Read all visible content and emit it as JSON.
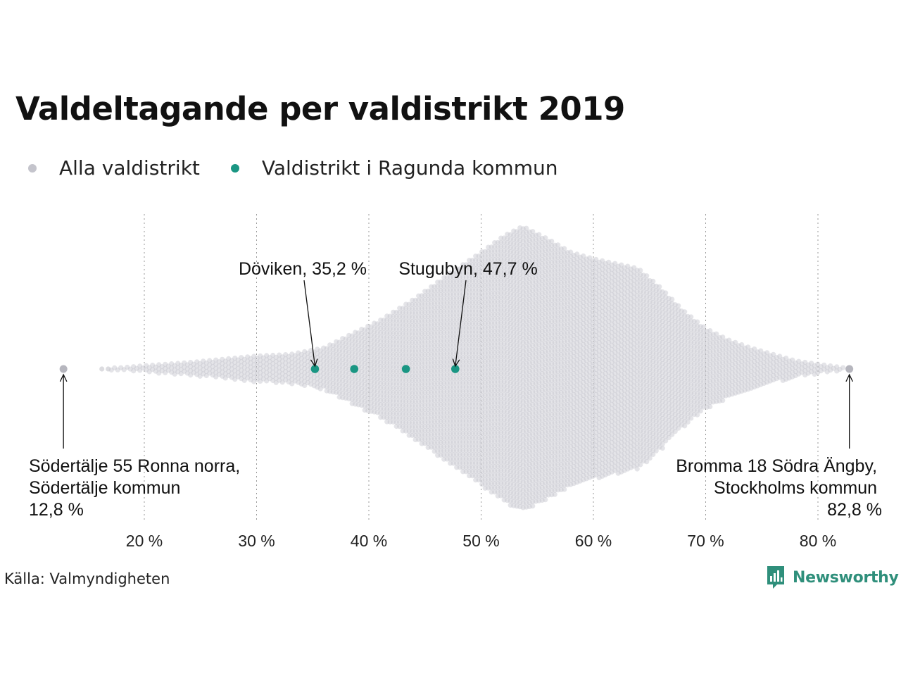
{
  "title": "Valdeltagande per valdistrikt 2019",
  "legend": [
    {
      "label": "Alla valdistrikt",
      "color": "#c4c4cc"
    },
    {
      "label": "Valdistrikt i Ragunda kommun",
      "color": "#1a9683"
    }
  ],
  "source": "Källa: Valmyndigheten",
  "brand": {
    "name": "Newsworthy",
    "color": "#2f8f7b"
  },
  "chart_data": {
    "type": "scatter",
    "title": "Valdeltagande per valdistrikt 2019",
    "xlim": [
      12,
      84
    ],
    "xticks": [
      {
        "value": 20,
        "label": "20 %"
      },
      {
        "value": 30,
        "label": "30 %"
      },
      {
        "value": 40,
        "label": "40 %"
      },
      {
        "value": 50,
        "label": "50 %"
      },
      {
        "value": 60,
        "label": "60 %"
      },
      {
        "value": 70,
        "label": "70 %"
      },
      {
        "value": 80,
        "label": "80 %"
      }
    ],
    "grid": "vertical dotted",
    "series": [
      {
        "name": "Alla valdistrikt",
        "color": "#c4c4cc",
        "distribution_profile": [
          [
            12.8,
            0.3
          ],
          [
            16,
            0.5
          ],
          [
            18,
            0.8
          ],
          [
            20,
            2
          ],
          [
            24,
            4
          ],
          [
            27,
            6
          ],
          [
            30,
            8
          ],
          [
            33,
            9
          ],
          [
            36,
            13
          ],
          [
            38,
            20
          ],
          [
            41,
            30
          ],
          [
            44,
            43
          ],
          [
            47,
            58
          ],
          [
            50,
            72
          ],
          [
            52,
            82
          ],
          [
            53.7,
            88
          ],
          [
            56,
            80
          ],
          [
            58,
            72
          ],
          [
            60,
            68
          ],
          [
            62,
            65
          ],
          [
            64,
            62
          ],
          [
            66,
            50
          ],
          [
            68,
            36
          ],
          [
            70,
            25
          ],
          [
            72,
            18
          ],
          [
            74,
            13
          ],
          [
            76,
            9
          ],
          [
            78,
            5
          ],
          [
            80,
            3
          ],
          [
            81,
            2
          ],
          [
            82.8,
            0.3
          ]
        ],
        "extremes": [
          {
            "value": 12.8,
            "name": "Södertälje 55 Ronna norra, Södertälje kommun"
          },
          {
            "value": 82.8,
            "name": "Bromma 18 Södra Ängby, Stockholms kommun"
          }
        ]
      },
      {
        "name": "Valdistrikt i Ragunda kommun",
        "color": "#1a9683",
        "points": [
          {
            "name": "Döviken",
            "value": 35.2
          },
          {
            "value": 38.7
          },
          {
            "value": 43.3
          },
          {
            "name": "Stugubyn",
            "value": 47.7
          }
        ]
      }
    ],
    "annotations": {
      "doviken": "Döviken, 35,2 %",
      "stugubyn": "Stugubyn, 47,7 %",
      "min_lines": [
        "Södertälje 55 Ronna norra,",
        "Södertälje kommun",
        "12,8 %"
      ],
      "max_lines": [
        "Bromma 18 Södra Ängby,",
        "Stockholms kommun",
        "82,8 %"
      ]
    }
  }
}
